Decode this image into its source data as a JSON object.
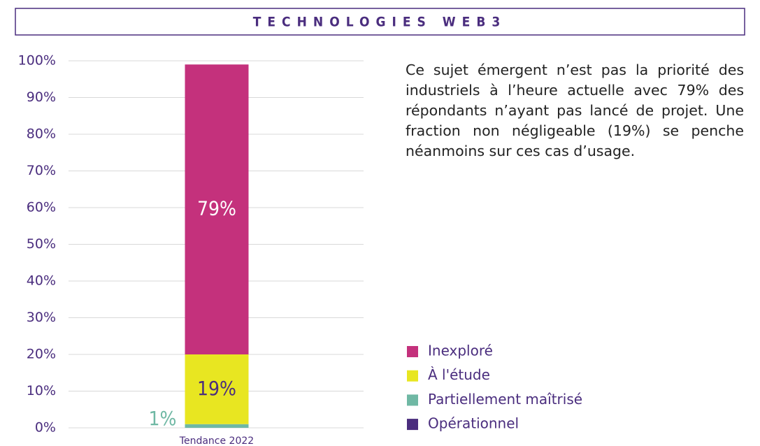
{
  "chart_data": {
    "type": "stacked_bar",
    "title": "TECHNOLOGIES WEB3",
    "text": "Ce sujet émergent n’est pas la priorité des industriels à l’heure actuelle avec 79% des répondants n’ayant pas lancé de projet. Une fraction non négligeable (19%) se penche néanmoins sur ces cas d’usage.",
    "categories": [
      "Tendance 2022"
    ],
    "series": [
      {
        "name": "Inexploré",
        "color": "#c4317c",
        "values": [
          79
        ],
        "value_labels": [
          "79%"
        ]
      },
      {
        "name": "À l'étude",
        "color": "#e8e621",
        "values": [
          19
        ],
        "value_labels": [
          "19%"
        ]
      },
      {
        "name": "Partiellement maîtrisé",
        "color": "#6fb8a4",
        "values": [
          1
        ],
        "value_labels": [
          "1%"
        ]
      },
      {
        "name": "Opérationnel",
        "color": "#4a2d7e",
        "values": [
          0
        ]
      }
    ],
    "ylim": [
      0,
      100
    ],
    "yticks": [
      {
        "value": 0,
        "label": "0%"
      },
      {
        "value": 10,
        "label": "10%"
      },
      {
        "value": 20,
        "label": "20%"
      },
      {
        "value": 30,
        "label": "30%"
      },
      {
        "value": 40,
        "label": "40%"
      },
      {
        "value": 50,
        "label": "50%"
      },
      {
        "value": 60,
        "label": "60%"
      },
      {
        "value": 70,
        "label": "70%"
      },
      {
        "value": 80,
        "label": "80%"
      },
      {
        "value": 90,
        "label": "90%"
      },
      {
        "value": 100,
        "label": "100%"
      }
    ],
    "grid": true,
    "legend": "lower right"
  }
}
